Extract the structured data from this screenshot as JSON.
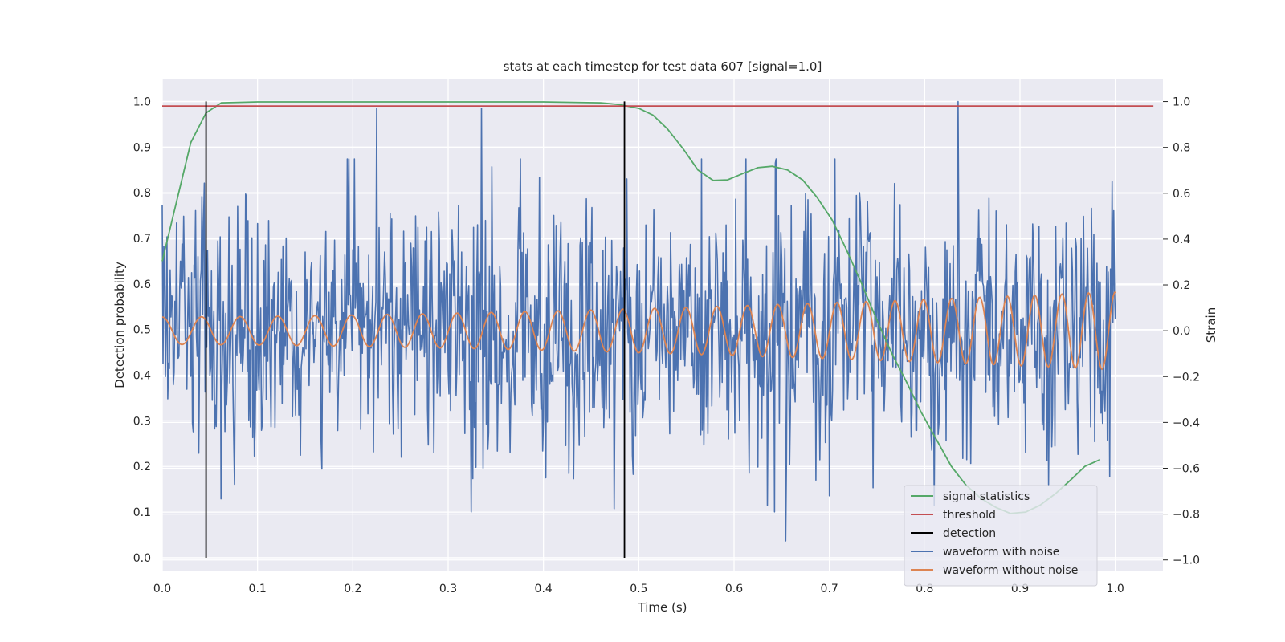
{
  "chart_data": {
    "type": "line",
    "title": "stats at each timestep for test data 607 [signal=1.0]",
    "xlabel": "Time (s)",
    "ylabel": "Detection probability",
    "ylabel_right": "Strain",
    "xlim": [
      0.0,
      1.05
    ],
    "ylim": [
      -0.03,
      1.05
    ],
    "ylim_right": [
      -1.05,
      1.1
    ],
    "x_ticks": [
      "0.0",
      "0.1",
      "0.2",
      "0.3",
      "0.4",
      "0.5",
      "0.6",
      "0.7",
      "0.8",
      "0.9",
      "1.0"
    ],
    "x_tick_values": [
      0,
      0.1,
      0.2,
      0.3,
      0.4,
      0.5,
      0.6,
      0.7,
      0.8,
      0.9,
      1.0
    ],
    "y_ticks": [
      "0.0",
      "0.1",
      "0.2",
      "0.3",
      "0.4",
      "0.5",
      "0.6",
      "0.7",
      "0.8",
      "0.9",
      "1.0"
    ],
    "y_tick_values": [
      0,
      0.1,
      0.2,
      0.3,
      0.4,
      0.5,
      0.6,
      0.7,
      0.8,
      0.9,
      1.0
    ],
    "y_right_ticks": [
      "−1.0",
      "−0.8",
      "−0.6",
      "−0.4",
      "−0.2",
      "0.0",
      "0.2",
      "0.4",
      "0.6",
      "0.8",
      "1.0"
    ],
    "y_right_tick_values": [
      -1.0,
      -0.8,
      -0.6,
      -0.4,
      -0.2,
      0.0,
      0.2,
      0.4,
      0.6,
      0.8,
      1.0
    ],
    "grid": true,
    "legend_position": "lower-right",
    "series": [
      {
        "name": "signal statistics",
        "color": "#55a868",
        "axis": "left",
        "x": [
          0.0,
          0.015,
          0.03,
          0.046,
          0.062,
          0.1,
          0.2,
          0.3,
          0.4,
          0.46,
          0.48,
          0.5,
          0.515,
          0.53,
          0.547,
          0.562,
          0.578,
          0.593,
          0.609,
          0.625,
          0.64,
          0.656,
          0.672,
          0.687,
          0.703,
          0.718,
          0.734,
          0.75,
          0.765,
          0.781,
          0.796,
          0.812,
          0.828,
          0.843,
          0.859,
          0.875,
          0.89,
          0.906,
          0.921,
          0.937,
          0.953,
          0.968,
          0.984
        ],
        "y": [
          0.65,
          0.78,
          0.91,
          0.975,
          0.997,
          0.999,
          0.999,
          0.999,
          0.999,
          0.997,
          0.993,
          0.985,
          0.97,
          0.94,
          0.895,
          0.85,
          0.827,
          0.828,
          0.842,
          0.855,
          0.858,
          0.85,
          0.828,
          0.79,
          0.74,
          0.675,
          0.6,
          0.52,
          0.45,
          0.385,
          0.32,
          0.26,
          0.2,
          0.16,
          0.13,
          0.11,
          0.097,
          0.1,
          0.115,
          0.14,
          0.17,
          0.2,
          0.215
        ]
      },
      {
        "name": "threshold",
        "color": "#c44e52",
        "axis": "left",
        "x": [
          0.0,
          1.04
        ],
        "y": [
          0.99,
          0.99
        ]
      },
      {
        "name": "detection",
        "color": "#000000",
        "axis": "left",
        "x": [
          0.046,
          0.485
        ],
        "y_range": [
          0.0,
          1.0
        ]
      },
      {
        "name": "waveform with noise",
        "color": "#4c72b0",
        "axis": "right",
        "sample_count": 1200,
        "x_range": [
          0.0,
          1.0
        ],
        "spike_x": [
          0.225,
          0.335,
          0.835
        ],
        "spike_y": [
          0.97,
          0.97,
          1.0
        ],
        "amplitude_range": [
          -0.93,
          0.75
        ]
      },
      {
        "name": "waveform without noise",
        "color": "#dd8452",
        "axis": "right",
        "sample_count": 1000,
        "x_range": [
          0.0,
          1.0
        ],
        "start_frequency": 24,
        "end_frequency": 36,
        "start_amplitude": 0.06,
        "end_amplitude": 0.17
      }
    ]
  }
}
